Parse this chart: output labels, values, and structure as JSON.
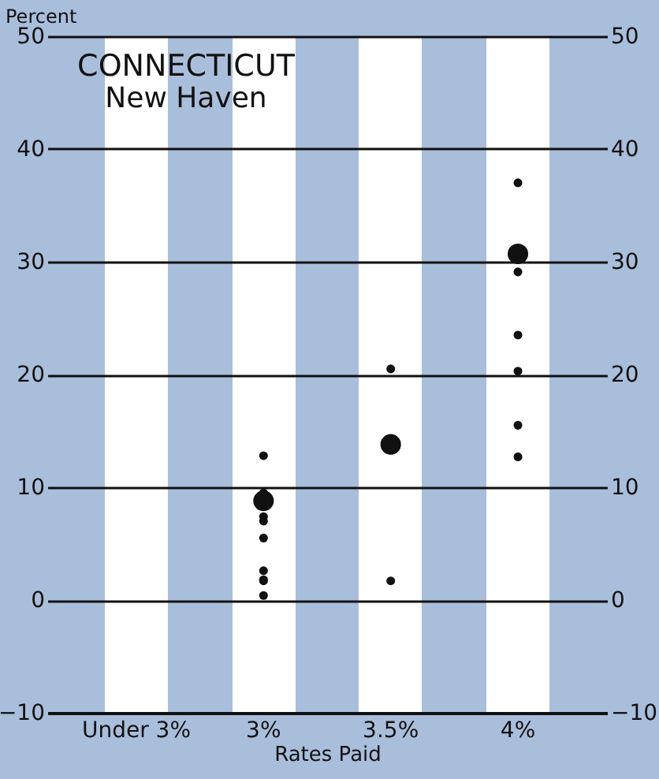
{
  "chart_data": {
    "type": "bubble",
    "title": "CONNECTICUT",
    "subtitle": "New Haven",
    "xlabel": "Rates Paid",
    "ylabel": "Percent",
    "categories": [
      "Under 3%",
      "3%",
      "3.5%",
      "4%"
    ],
    "series": [
      {
        "color": "#111111",
        "x": [
          "3%",
          "3%",
          "3%",
          "3%",
          "3%",
          "3%",
          "3%",
          "3%",
          "3%",
          "3%",
          "3.5%",
          "3.5%",
          "3.5%",
          "4%",
          "4%",
          "4%",
          "4%",
          "4%",
          "4%",
          "4%"
        ],
        "values": [
          12.8,
          8.8,
          9.5,
          7.4,
          7.0,
          5.5,
          2.6,
          1.7,
          1.8,
          0.4,
          20.5,
          13.8,
          1.7,
          37.0,
          30.7,
          29.1,
          23.5,
          20.3,
          15.5,
          12.7
        ],
        "sizes": [
          0.18,
          1,
          0.18,
          0.18,
          0.18,
          0.18,
          0.18,
          0.18,
          0.18,
          0.18,
          0.18,
          1,
          0.18,
          0.18,
          1,
          0.18,
          0.18,
          0.18,
          0.18,
          0.18
        ]
      }
    ],
    "ylim": [
      -10,
      50
    ],
    "yticks": [
      -10,
      0,
      10,
      20,
      30,
      40,
      50
    ],
    "y2lim": [
      -10,
      50
    ],
    "y2ticks": [
      -10,
      0,
      10,
      20,
      30,
      40,
      50
    ],
    "grid": true,
    "legend": false
  }
}
